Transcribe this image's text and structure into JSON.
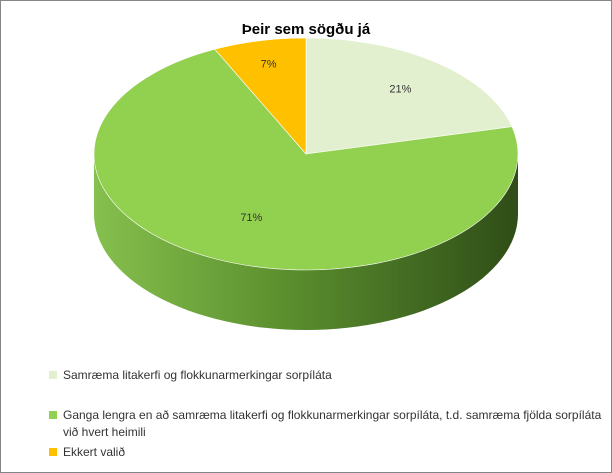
{
  "chart_data": {
    "type": "pie",
    "title": "Þeir sem sögðu já",
    "categories": [
      "Samræma litakerfi og flokkunarmerkingar sorpíláta",
      "Ganga lengra en að samræma litakerfi og flokkunarmerkingar sorpíláta, t.d. samræma fjölda sorpíláta við hvert heimili",
      "Ekkert valið"
    ],
    "values": [
      21,
      71,
      7
    ],
    "data_labels": [
      "21%",
      "71%",
      "7%"
    ],
    "colors": [
      "#e3f0cf",
      "#92d050",
      "#ffc000"
    ],
    "legend": "bottom"
  }
}
